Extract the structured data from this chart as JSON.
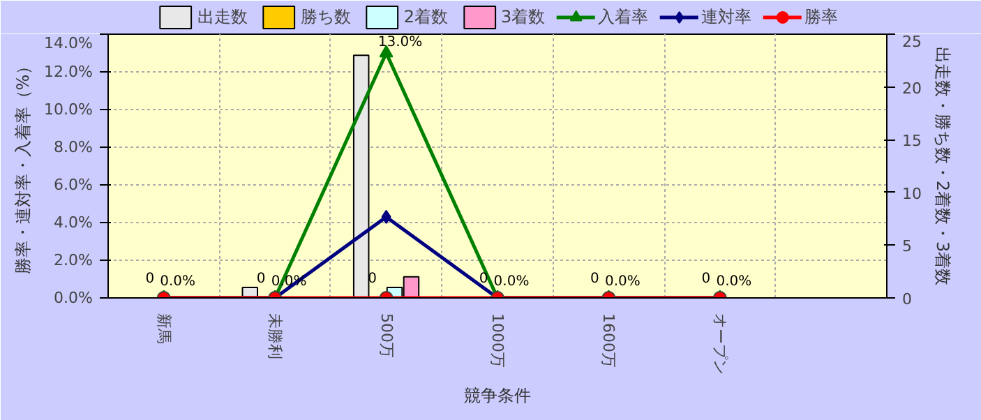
{
  "chart_data": {
    "type": "bar",
    "xlabel": "競争条件",
    "ylabel": "勝率・連対率・入着率（%）",
    "y2label": "出走数・勝ち数・2着数・3着数",
    "categories": [
      "新馬",
      "未勝利",
      "500万",
      "1000万",
      "1600万",
      "オープン",
      null
    ],
    "series": [
      {
        "name": "出走数",
        "axis": "y2",
        "color": "#e8e8e8",
        "values": [
          0,
          1,
          23,
          0,
          0,
          0,
          null
        ]
      },
      {
        "name": "勝ち数",
        "axis": "y2",
        "color": "#ffcc00",
        "values": [
          0,
          0,
          0,
          0,
          0,
          0,
          null
        ],
        "value_labels": [
          "0",
          "0",
          "0",
          "0",
          "0",
          "0",
          null
        ]
      },
      {
        "name": "2着数",
        "axis": "y2",
        "color": "#ccffff",
        "values": [
          0,
          0,
          1,
          0,
          0,
          0,
          null
        ]
      },
      {
        "name": "3着数",
        "axis": "y2",
        "color": "#ff99cc",
        "values": [
          0,
          0,
          2,
          0,
          0,
          0,
          null
        ]
      },
      {
        "name": "入着率",
        "type": "line",
        "color": "#008000",
        "marker": "triangle",
        "values": [
          0,
          0,
          13.0,
          0,
          0,
          0,
          null
        ],
        "value_labels": [
          null,
          null,
          "13.0%",
          null,
          null,
          null,
          null
        ]
      },
      {
        "name": "連対率",
        "type": "line",
        "color": "#000080",
        "marker": "diamond",
        "values": [
          0,
          0,
          4.3,
          0,
          0,
          0,
          null
        ]
      },
      {
        "name": "勝率",
        "type": "line",
        "color": "#ff0000",
        "marker": "circle",
        "values": [
          0,
          0,
          0,
          0,
          0,
          0,
          null
        ],
        "value_labels": [
          "0.0%",
          "0.0%",
          null,
          "0.0%",
          "0.0%",
          "0.0%",
          null
        ]
      }
    ],
    "ylim": [
      0,
      14
    ],
    "yticks": [
      {
        "value": 0,
        "label": "0.0%"
      },
      {
        "value": 2,
        "label": "2.0%"
      },
      {
        "value": 4,
        "label": "4.0%"
      },
      {
        "value": 6,
        "label": "6.0%"
      },
      {
        "value": 8,
        "label": "8.0%"
      },
      {
        "value": 10,
        "label": "10.0%"
      },
      {
        "value": 12,
        "label": "12.0%"
      },
      {
        "value": 14,
        "label": "14.0%"
      }
    ],
    "y2lim": [
      0,
      25
    ],
    "y2ticks": [
      0,
      5,
      10,
      15,
      20,
      25
    ],
    "grid": true,
    "legend": "top",
    "line_style": "solid"
  }
}
